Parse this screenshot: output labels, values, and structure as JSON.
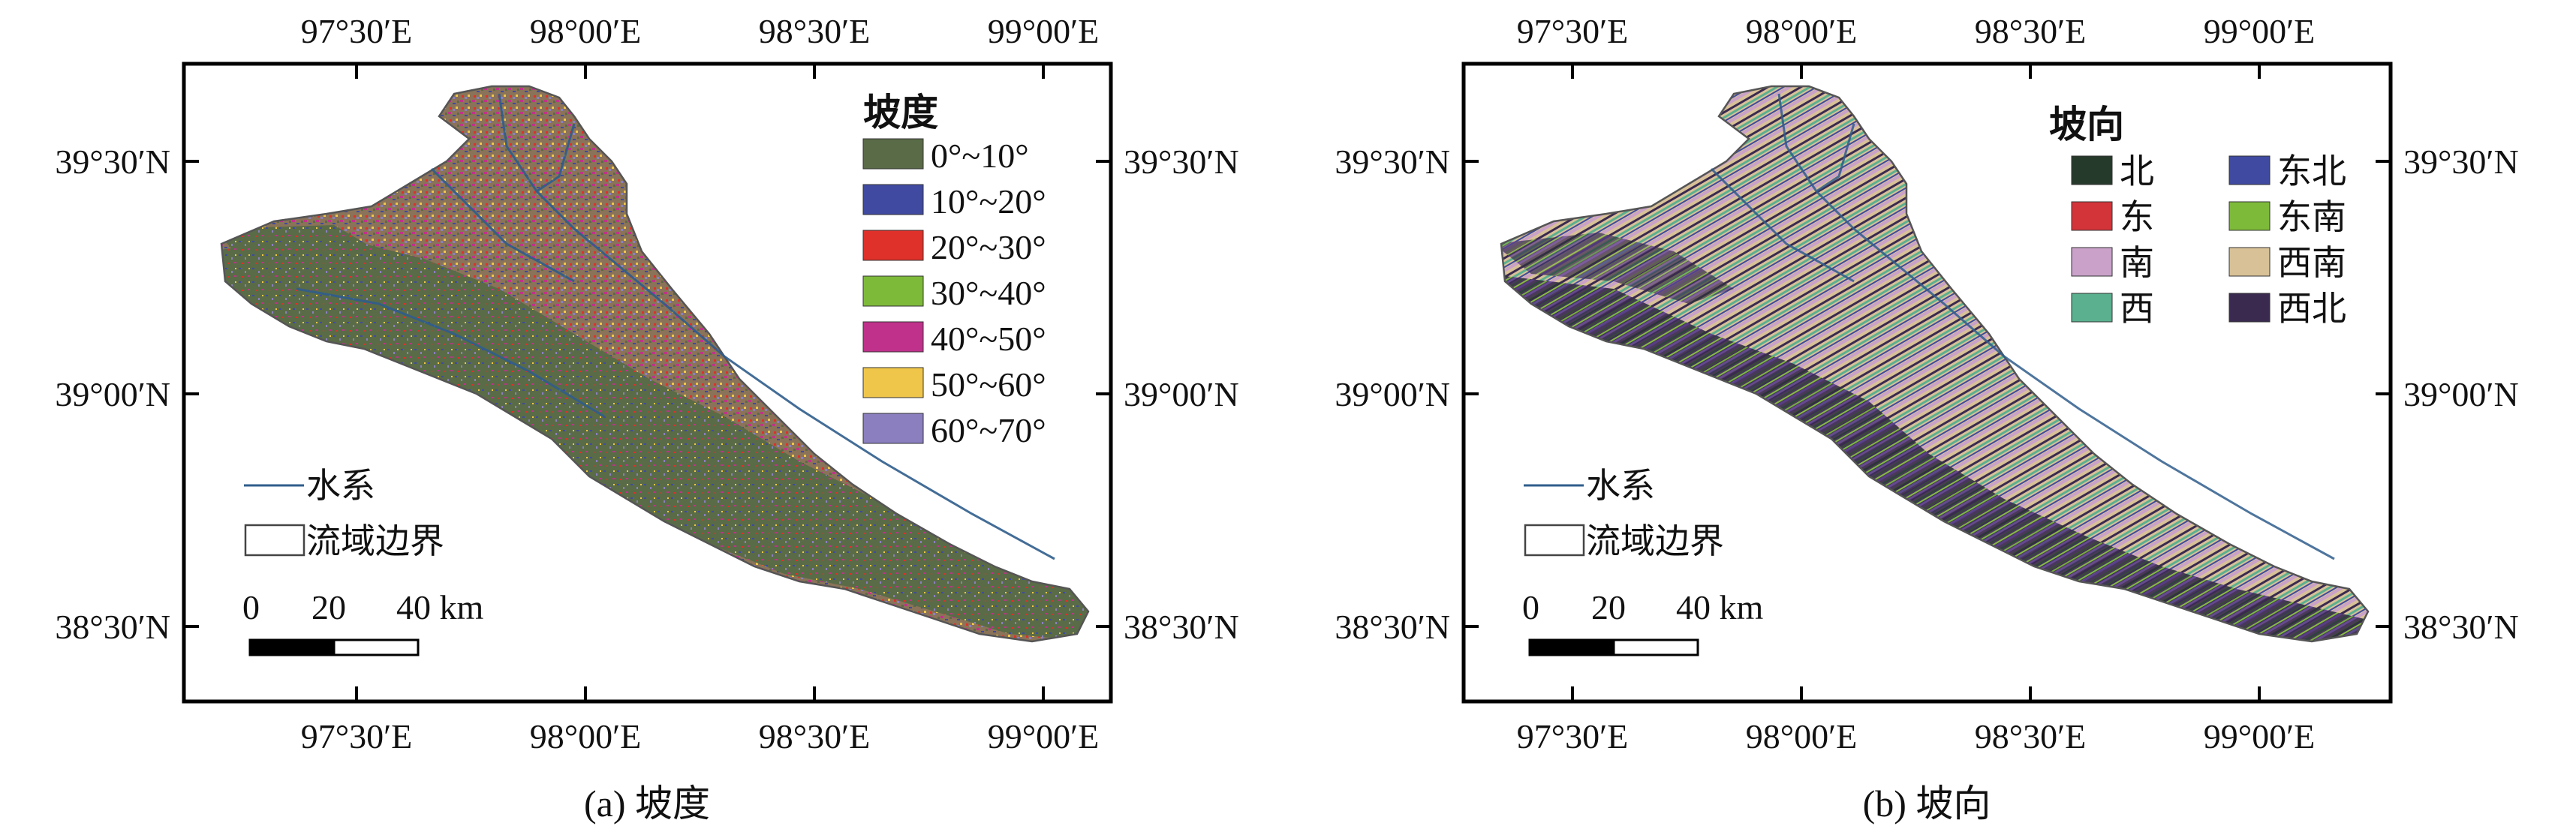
{
  "panels": {
    "a": {
      "caption": "(a) 坡度",
      "legend_title": "坡度",
      "legend": [
        {
          "label": "0°~10°",
          "color": "#5a6b47"
        },
        {
          "label": "10°~20°",
          "color": "#3f4aa0"
        },
        {
          "label": "20°~30°",
          "color": "#e0302a"
        },
        {
          "label": "30°~40°",
          "color": "#7dba3a"
        },
        {
          "label": "40°~50°",
          "color": "#c0318b"
        },
        {
          "label": "50°~60°",
          "color": "#f0c64a"
        },
        {
          "label": "60°~70°",
          "color": "#8b7fc0"
        }
      ]
    },
    "b": {
      "caption": "(b) 坡向",
      "legend_title": "坡向",
      "legend": [
        {
          "label": "北",
          "color": "#263a2c"
        },
        {
          "label": "东",
          "color": "#d3343a"
        },
        {
          "label": "南",
          "color": "#c9a1c9"
        },
        {
          "label": "西",
          "color": "#5ab08f"
        },
        {
          "label": "东北",
          "color": "#3f4aa0"
        },
        {
          "label": "东南",
          "color": "#7dba3a"
        },
        {
          "label": "西南",
          "color": "#d8c197"
        },
        {
          "label": "西北",
          "color": "#3a2a50"
        }
      ]
    }
  },
  "common": {
    "x_ticks": [
      "97°30′E",
      "98°00′E",
      "98°30′E",
      "99°00′E"
    ],
    "y_ticks": [
      "39°30′N",
      "39°00′N",
      "38°30′N"
    ],
    "river_label": "水系",
    "boundary_label": "流域边界",
    "scale_labels": [
      "0",
      "20",
      "40 km"
    ]
  },
  "map_data": {
    "type": "raster-map",
    "lon_range_deg": [
      97.3,
      99.25
    ],
    "lat_range_deg": [
      38.25,
      39.78
    ],
    "x_ticks_deg": [
      97.5,
      98.0,
      98.5,
      99.0
    ],
    "y_ticks_deg": [
      39.5,
      39.0,
      38.5
    ],
    "scale_km": [
      0,
      20,
      40
    ]
  }
}
